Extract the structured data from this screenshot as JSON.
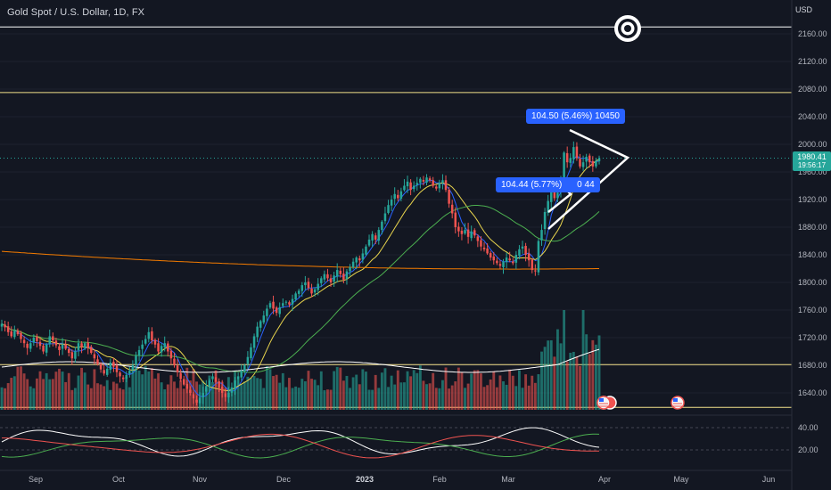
{
  "title": "Gold Spot / U.S. Dollar, 1D, FX",
  "currency": "USD",
  "last_price": "1980.41",
  "countdown": "19:56:17",
  "annotations": {
    "upper": "104.50 (5.46%) 10450",
    "lower": "104.44 (5.77%)",
    "lower_suffix": "0 44"
  },
  "colors": {
    "background": "#131722",
    "up": "#26a69a",
    "down": "#ef5350",
    "grid": "#1e222d",
    "ma_blue": "#2962ff",
    "ma_yellow": "#e8d44d",
    "ma_green": "#4caf50",
    "ma_orange": "#f57c00",
    "hline_white": "#ffffff",
    "hline_yellow": "#f2e08a"
  },
  "chart_data": {
    "type": "candlestick",
    "y_axis": {
      "ticks": [
        1640,
        1680,
        1720,
        1760,
        1800,
        1840,
        1880,
        1920,
        1960,
        2000,
        2040,
        2080,
        2120,
        2160
      ],
      "range": [
        1610,
        2190
      ]
    },
    "x_axis": {
      "labels": [
        "Sep",
        "Oct",
        "Nov",
        "Dec",
        "2023",
        "Feb",
        "Mar",
        "Apr",
        "May",
        "Jun"
      ],
      "bold": [
        "2023"
      ]
    },
    "horizontal_lines": [
      {
        "price": 2170,
        "color": "white"
      },
      {
        "price": 2075,
        "color": "yellow"
      },
      {
        "price": 1681,
        "color": "yellow"
      },
      {
        "price": 1619,
        "color": "yellow"
      }
    ],
    "close_series": [
      1740,
      1735,
      1728,
      1722,
      1730,
      1725,
      1718,
      1712,
      1705,
      1712,
      1720,
      1715,
      1708,
      1700,
      1710,
      1722,
      1716,
      1709,
      1702,
      1710,
      1704,
      1698,
      1690,
      1700,
      1712,
      1706,
      1712,
      1705,
      1698,
      1690,
      1682,
      1674,
      1668,
      1675,
      1684,
      1678,
      1670,
      1664,
      1660,
      1666,
      1672,
      1680,
      1694,
      1702,
      1710,
      1718,
      1728,
      1716,
      1710,
      1700,
      1708,
      1712,
      1700,
      1690,
      1680,
      1670,
      1660,
      1652,
      1646,
      1640,
      1632,
      1626,
      1633,
      1640,
      1650,
      1658,
      1664,
      1656,
      1648,
      1640,
      1634,
      1640,
      1648,
      1658,
      1664,
      1672,
      1680,
      1692,
      1706,
      1722,
      1736,
      1744,
      1752,
      1762,
      1770,
      1762,
      1756,
      1764,
      1770,
      1772,
      1768,
      1776,
      1784,
      1788,
      1796,
      1800,
      1792,
      1784,
      1790,
      1798,
      1806,
      1812,
      1806,
      1800,
      1810,
      1818,
      1812,
      1804,
      1816,
      1822,
      1830,
      1836,
      1832,
      1842,
      1852,
      1862,
      1870,
      1862,
      1876,
      1888,
      1900,
      1912,
      1920,
      1928,
      1922,
      1932,
      1940,
      1946,
      1934,
      1940,
      1944,
      1950,
      1946,
      1952,
      1948,
      1940,
      1936,
      1944,
      1948,
      1934,
      1914,
      1900,
      1880,
      1874,
      1870,
      1876,
      1866,
      1874,
      1868,
      1860,
      1852,
      1848,
      1842,
      1836,
      1832,
      1828,
      1824,
      1830,
      1836,
      1832,
      1828,
      1840,
      1848,
      1852,
      1840,
      1832,
      1818,
      1816,
      1860,
      1876,
      1902,
      1918,
      1934,
      1922,
      1930,
      1952,
      1988,
      1974,
      1980,
      1996,
      1980,
      1968,
      1974,
      1982,
      1974,
      1968,
      1976,
      1980
    ],
    "overlay_series": [
      {
        "name": "ma_blue",
        "color": "blue"
      },
      {
        "name": "ma_yellow",
        "color": "yellow"
      },
      {
        "name": "ma_green",
        "color": "green"
      },
      {
        "name": "ma_orange",
        "color": "orange"
      }
    ],
    "oscillator": {
      "ticks": [
        20,
        40
      ],
      "range": [
        5,
        55
      ]
    }
  }
}
